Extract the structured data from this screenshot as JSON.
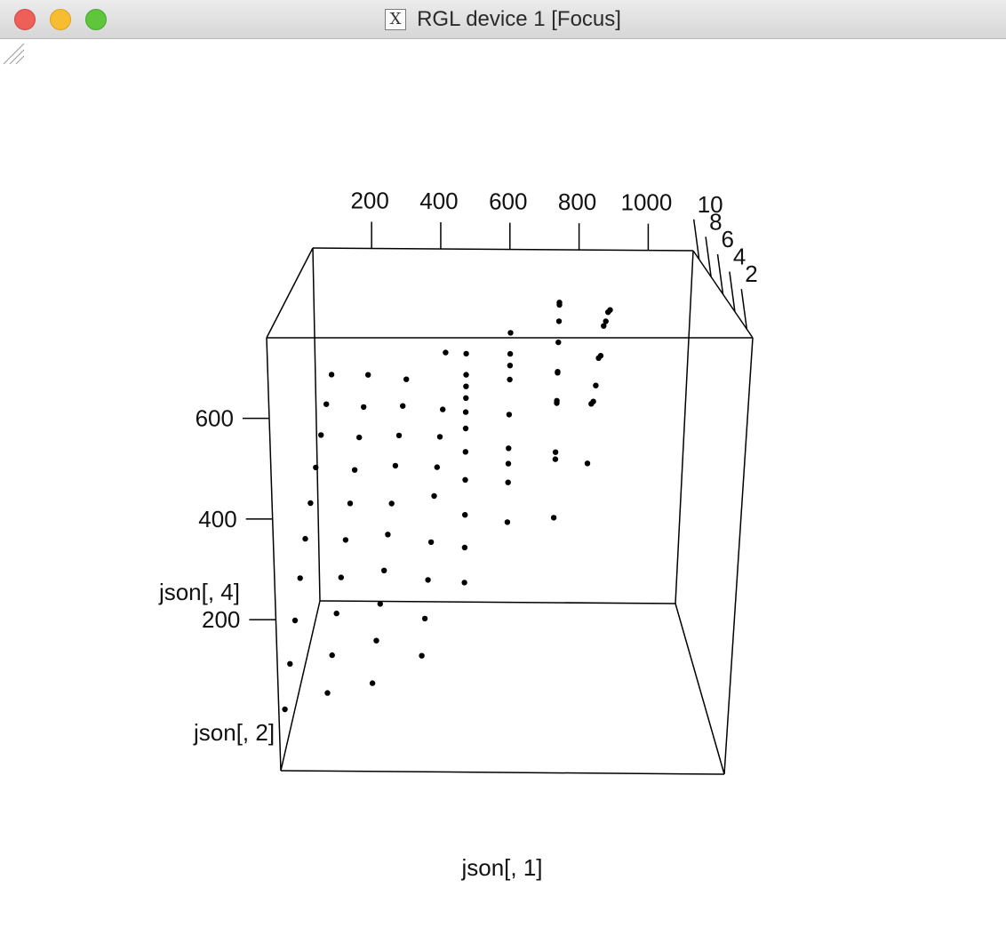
{
  "window": {
    "title": "RGL device 1 [Focus]",
    "x11_icon_glyph": "X",
    "controls": [
      "close",
      "minimize",
      "zoom"
    ]
  },
  "chart_data": {
    "type": "scatter",
    "dimensions": 3,
    "xlabel": "json[, 1]",
    "ylabel": "json[, 4]",
    "zlabel": "json[, 2]",
    "x_ticks": [
      "200",
      "400",
      "600",
      "800",
      "1000"
    ],
    "y_ticks": [
      "200",
      "400",
      "600"
    ],
    "z_ticks": [
      "2",
      "4",
      "6",
      "8",
      "10"
    ],
    "xlim": [
      30,
      1130
    ],
    "ylim": [
      -100,
      760
    ],
    "zlim": [
      1,
      11
    ],
    "point_color": "#000000",
    "box": true,
    "points": [
      {
        "x": 45,
        "y": 22,
        "z": 1
      },
      {
        "x": 50,
        "y": 82,
        "z": 2
      },
      {
        "x": 55,
        "y": 140,
        "z": 3
      },
      {
        "x": 60,
        "y": 198,
        "z": 4
      },
      {
        "x": 65,
        "y": 252,
        "z": 5
      },
      {
        "x": 70,
        "y": 300,
        "z": 6
      },
      {
        "x": 75,
        "y": 350,
        "z": 7
      },
      {
        "x": 80,
        "y": 395,
        "z": 8
      },
      {
        "x": 85,
        "y": 438,
        "z": 9
      },
      {
        "x": 90,
        "y": 480,
        "z": 10
      },
      {
        "x": 150,
        "y": 55,
        "z": 1
      },
      {
        "x": 155,
        "y": 100,
        "z": 2
      },
      {
        "x": 160,
        "y": 155,
        "z": 3
      },
      {
        "x": 165,
        "y": 200,
        "z": 4
      },
      {
        "x": 170,
        "y": 250,
        "z": 5
      },
      {
        "x": 175,
        "y": 300,
        "z": 6
      },
      {
        "x": 180,
        "y": 345,
        "z": 7
      },
      {
        "x": 185,
        "y": 390,
        "z": 8
      },
      {
        "x": 190,
        "y": 432,
        "z": 9
      },
      {
        "x": 195,
        "y": 480,
        "z": 10
      },
      {
        "x": 260,
        "y": 75,
        "z": 1
      },
      {
        "x": 265,
        "y": 130,
        "z": 2
      },
      {
        "x": 270,
        "y": 175,
        "z": 3
      },
      {
        "x": 275,
        "y": 215,
        "z": 4
      },
      {
        "x": 280,
        "y": 262,
        "z": 5
      },
      {
        "x": 285,
        "y": 300,
        "z": 6
      },
      {
        "x": 290,
        "y": 355,
        "z": 7
      },
      {
        "x": 295,
        "y": 395,
        "z": 8
      },
      {
        "x": 300,
        "y": 435,
        "z": 9
      },
      {
        "x": 305,
        "y": 470,
        "z": 10
      },
      {
        "x": 380,
        "y": 130,
        "z": 1
      },
      {
        "x": 385,
        "y": 175,
        "z": 2
      },
      {
        "x": 390,
        "y": 225,
        "z": 3
      },
      {
        "x": 395,
        "y": 275,
        "z": 4
      },
      {
        "x": 400,
        "y": 345,
        "z": 5
      },
      {
        "x": 405,
        "y": 380,
        "z": 6
      },
      {
        "x": 410,
        "y": 420,
        "z": 7
      },
      {
        "x": 415,
        "y": 455,
        "z": 8
      },
      {
        "x": 420,
        "y": 560,
        "z": 9
      },
      {
        "x": 480,
        "y": 160,
        "z": 5
      },
      {
        "x": 480,
        "y": 235,
        "z": 5
      },
      {
        "x": 480,
        "y": 305,
        "z": 5
      },
      {
        "x": 480,
        "y": 380,
        "z": 5
      },
      {
        "x": 480,
        "y": 440,
        "z": 5
      },
      {
        "x": 480,
        "y": 490,
        "z": 5
      },
      {
        "x": 480,
        "y": 525,
        "z": 5
      },
      {
        "x": 480,
        "y": 555,
        "z": 5
      },
      {
        "x": 480,
        "y": 580,
        "z": 5
      },
      {
        "x": 480,
        "y": 605,
        "z": 5
      },
      {
        "x": 480,
        "y": 650,
        "z": 5
      },
      {
        "x": 590,
        "y": 290,
        "z": 5
      },
      {
        "x": 590,
        "y": 375,
        "z": 5
      },
      {
        "x": 590,
        "y": 415,
        "z": 5
      },
      {
        "x": 590,
        "y": 448,
        "z": 5
      },
      {
        "x": 590,
        "y": 520,
        "z": 5
      },
      {
        "x": 590,
        "y": 595,
        "z": 5
      },
      {
        "x": 590,
        "y": 625,
        "z": 5
      },
      {
        "x": 590,
        "y": 650,
        "z": 5
      },
      {
        "x": 590,
        "y": 695,
        "z": 5
      },
      {
        "x": 710,
        "y": 300,
        "z": 5
      },
      {
        "x": 710,
        "y": 425,
        "z": 5
      },
      {
        "x": 710,
        "y": 440,
        "z": 5
      },
      {
        "x": 710,
        "y": 545,
        "z": 5
      },
      {
        "x": 710,
        "y": 550,
        "z": 5
      },
      {
        "x": 710,
        "y": 610,
        "z": 5
      },
      {
        "x": 710,
        "y": 612,
        "z": 5
      },
      {
        "x": 710,
        "y": 675,
        "z": 5
      },
      {
        "x": 710,
        "y": 755,
        "z": 5
      },
      {
        "x": 710,
        "y": 760,
        "z": 5
      },
      {
        "x": 710,
        "y": 720,
        "z": 5
      },
      {
        "x": 800,
        "y": 390,
        "z": 6
      },
      {
        "x": 805,
        "y": 520,
        "z": 6
      },
      {
        "x": 810,
        "y": 525,
        "z": 6
      },
      {
        "x": 815,
        "y": 560,
        "z": 6
      },
      {
        "x": 820,
        "y": 620,
        "z": 6
      },
      {
        "x": 825,
        "y": 625,
        "z": 6
      },
      {
        "x": 830,
        "y": 690,
        "z": 6
      },
      {
        "x": 835,
        "y": 700,
        "z": 6
      },
      {
        "x": 840,
        "y": 720,
        "z": 6
      },
      {
        "x": 845,
        "y": 725,
        "z": 6
      }
    ]
  }
}
